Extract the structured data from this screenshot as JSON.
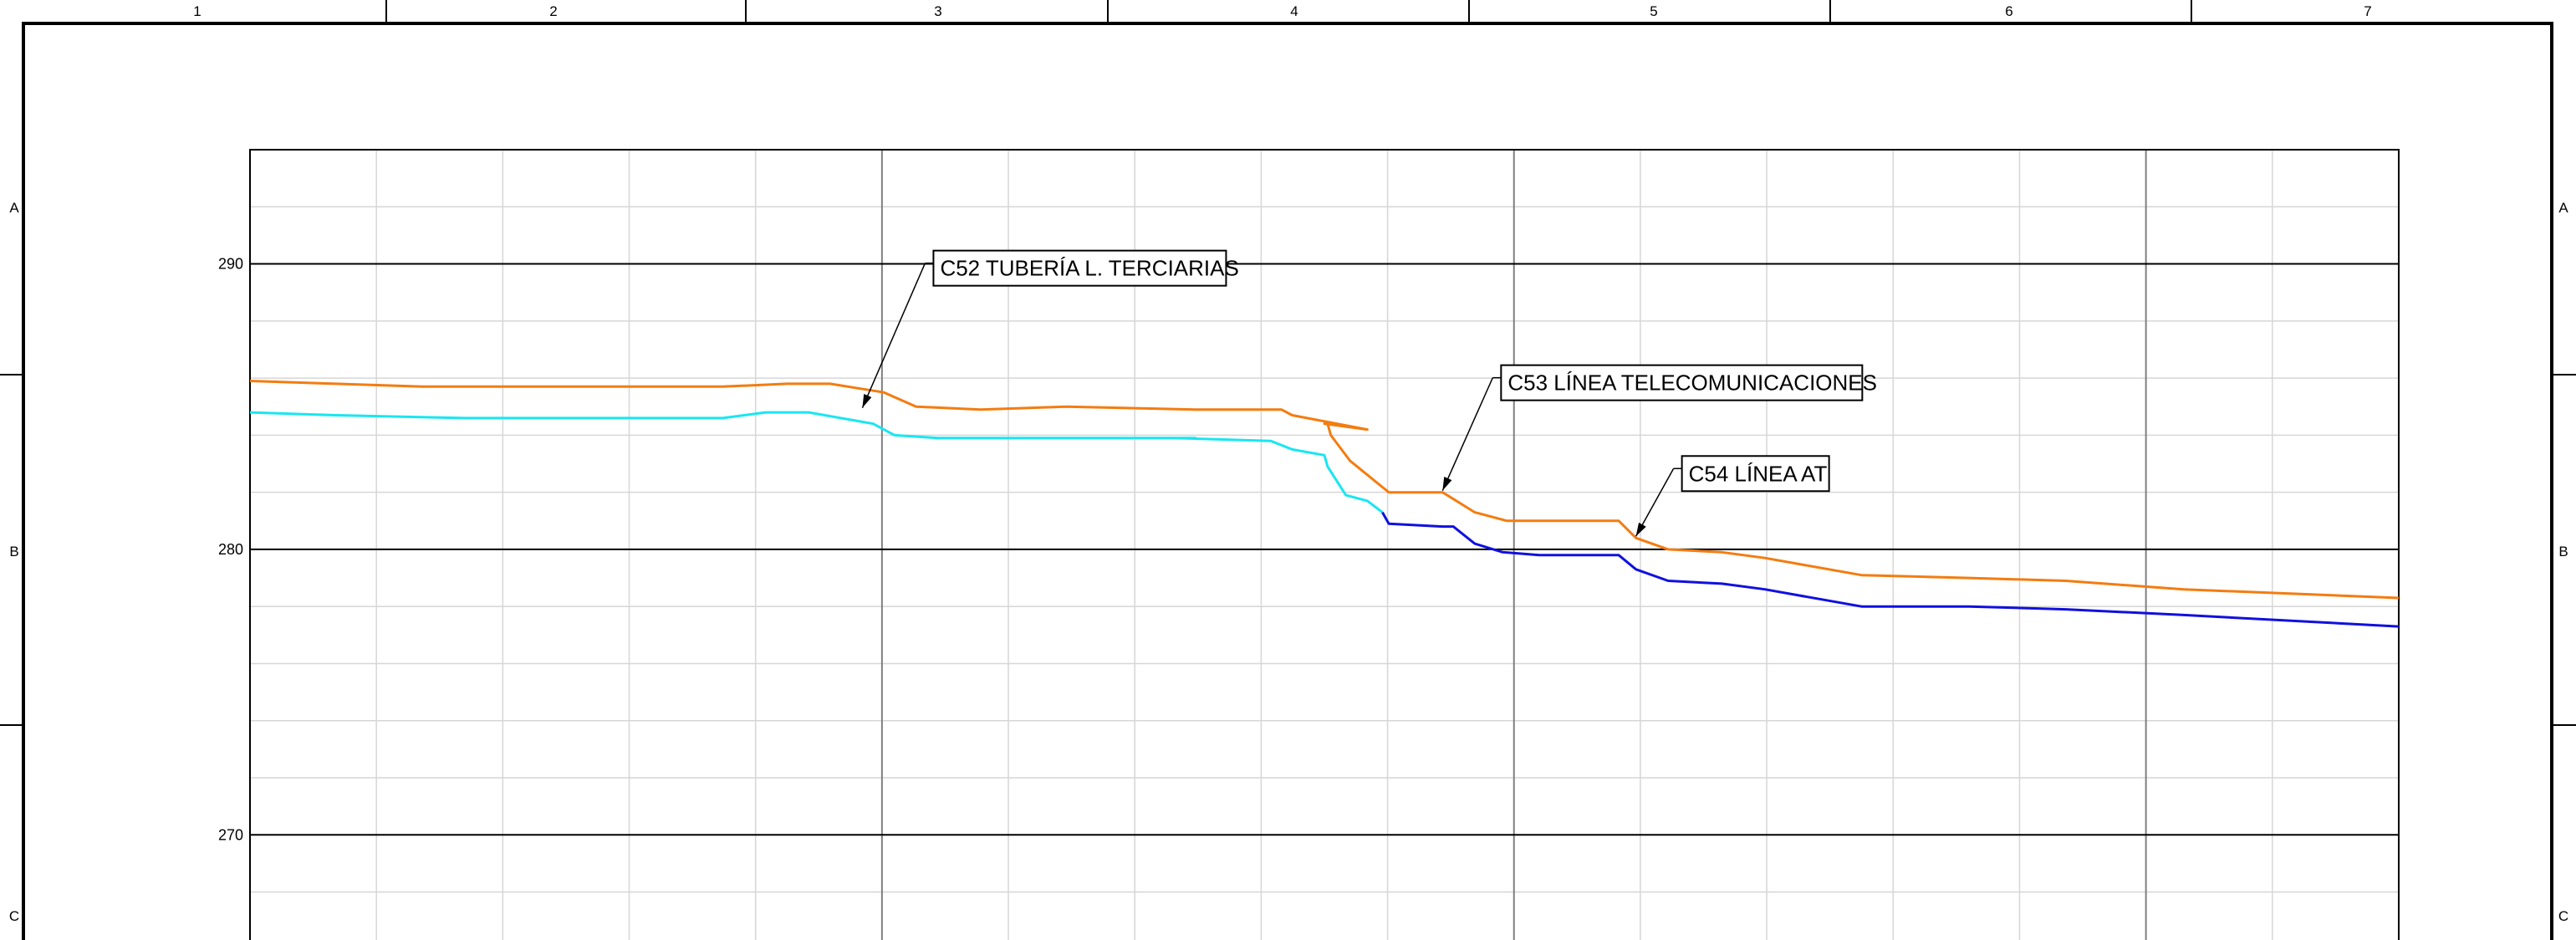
{
  "sheet": {
    "column_labels": [
      "1",
      "2",
      "3",
      "4",
      "5",
      "6",
      "7"
    ],
    "row_labels": [
      "A",
      "B",
      "C"
    ]
  },
  "chart_data": {
    "type": "line",
    "title": "",
    "xlabel": "",
    "ylabel": "",
    "ylim": [
      265,
      294
    ],
    "y_ticks": [
      "290",
      "280",
      "270"
    ],
    "grid": "on",
    "colors": {
      "orange_line": "#f47c10",
      "cyan_line": "#19e6f2",
      "blue_line": "#1010e0",
      "minor_grid": "#d6d6d6",
      "major_grid": "#808080"
    },
    "series": [
      {
        "color": "orange_line",
        "points": [
          [
            0,
            285.9
          ],
          [
            0.04,
            285.8
          ],
          [
            0.08,
            285.7
          ],
          [
            0.14,
            285.7
          ],
          [
            0.18,
            285.7
          ],
          [
            0.22,
            285.7
          ],
          [
            0.25,
            285.8
          ],
          [
            0.27,
            285.8
          ],
          [
            0.295,
            285.5
          ],
          [
            0.31,
            285.0
          ],
          [
            0.34,
            284.9
          ],
          [
            0.38,
            285.0
          ],
          [
            0.44,
            284.9
          ],
          [
            0.48,
            284.9
          ],
          [
            0.485,
            284.7
          ],
          [
            0.52,
            284.2
          ],
          [
            0.5,
            284.4
          ],
          [
            0.5015,
            284.4
          ],
          [
            0.503,
            284.0
          ],
          [
            0.512,
            283.1
          ],
          [
            0.53,
            282.0
          ],
          [
            0.555,
            282.0
          ],
          [
            0.57,
            281.3
          ],
          [
            0.585,
            281.0
          ],
          [
            0.6,
            281.0
          ],
          [
            0.637,
            281.0
          ],
          [
            0.645,
            280.4
          ],
          [
            0.66,
            280.0
          ],
          [
            0.685,
            279.9
          ],
          [
            0.705,
            279.7
          ],
          [
            0.75,
            279.1
          ],
          [
            0.8,
            279.0
          ],
          [
            0.845,
            278.9
          ],
          [
            0.9,
            278.6
          ],
          [
            1.0,
            278.3
          ]
        ]
      },
      {
        "color": "cyan_line",
        "points": [
          [
            0,
            284.8
          ],
          [
            0.04,
            284.7
          ],
          [
            0.1,
            284.6
          ],
          [
            0.14,
            284.6
          ],
          [
            0.17,
            284.6
          ],
          [
            0.2,
            284.6
          ],
          [
            0.22,
            284.6
          ],
          [
            0.24,
            284.8
          ],
          [
            0.26,
            284.8
          ],
          [
            0.29,
            284.4
          ],
          [
            0.3,
            284.0
          ],
          [
            0.32,
            283.9
          ],
          [
            0.38,
            283.9
          ],
          [
            0.44,
            283.9
          ],
          [
            0.43,
            283.9
          ],
          [
            0.475,
            283.8
          ],
          [
            0.485,
            283.5
          ],
          [
            0.5,
            283.3
          ],
          [
            0.5015,
            282.9
          ],
          [
            0.51,
            281.9
          ],
          [
            0.52,
            281.7
          ],
          [
            0.527,
            281.3
          ]
        ]
      },
      {
        "color": "blue_line",
        "points": [
          [
            0.527,
            281.3
          ],
          [
            0.53,
            280.9
          ],
          [
            0.555,
            280.8
          ],
          [
            0.56,
            280.8
          ],
          [
            0.57,
            280.2
          ],
          [
            0.583,
            279.9
          ],
          [
            0.6,
            279.8
          ],
          [
            0.637,
            279.8
          ],
          [
            0.645,
            279.3
          ],
          [
            0.66,
            278.9
          ],
          [
            0.685,
            278.8
          ],
          [
            0.705,
            278.6
          ],
          [
            0.75,
            278.0
          ],
          [
            0.8,
            278.0
          ],
          [
            0.845,
            277.9
          ],
          [
            0.9,
            277.7
          ],
          [
            1.0,
            277.3
          ]
        ]
      }
    ],
    "annotations": [
      {
        "text": "C52 TUBERÍA L. TERCIARIAS",
        "x": 0.285,
        "y": 284.9
      },
      {
        "text": "C53 LÍNEA TELECOMUNICACIONES",
        "x": 0.555,
        "y": 282.0
      },
      {
        "text": "C54 LÍNEA AT",
        "x": 0.645,
        "y": 280.4
      }
    ]
  }
}
